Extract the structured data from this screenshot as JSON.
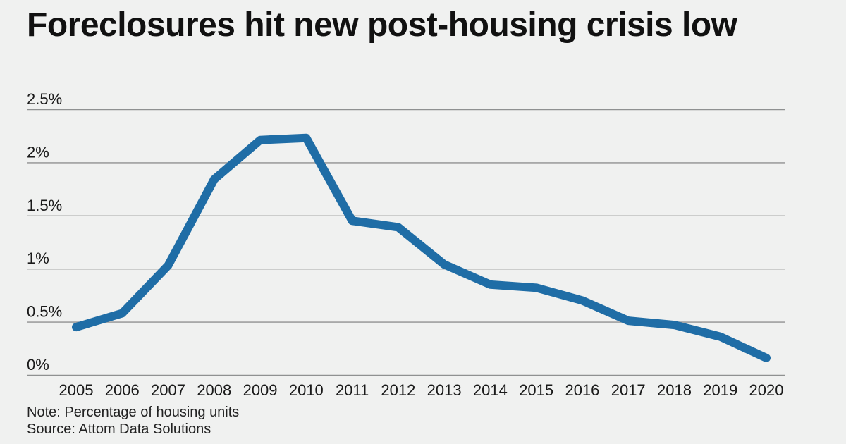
{
  "header": {
    "title": "Foreclosures hit new post-housing crisis low"
  },
  "chart_data": {
    "type": "line",
    "title": "Foreclosures hit new post-housing crisis low",
    "xlabel": "",
    "ylabel": "",
    "categories": [
      "2005",
      "2006",
      "2007",
      "2008",
      "2009",
      "2010",
      "2011",
      "2012",
      "2013",
      "2014",
      "2015",
      "2016",
      "2017",
      "2018",
      "2019",
      "2020"
    ],
    "values": [
      0.45,
      0.58,
      1.03,
      1.84,
      2.21,
      2.23,
      1.45,
      1.39,
      1.04,
      0.85,
      0.82,
      0.7,
      0.51,
      0.47,
      0.36,
      0.16
    ],
    "unit": "percent of housing units",
    "ylim": [
      0,
      2.5
    ],
    "y_ticks": [
      {
        "value": 0,
        "label": "0%"
      },
      {
        "value": 0.5,
        "label": "0.5%"
      },
      {
        "value": 1,
        "label": "1%"
      },
      {
        "value": 1.5,
        "label": "1.5%"
      },
      {
        "value": 2,
        "label": "2%"
      },
      {
        "value": 2.5,
        "label": "2.5%"
      }
    ],
    "grid": true,
    "legend": "none",
    "line_color": "#1f6da6",
    "line_width": 12
  },
  "footer": {
    "note": "Note: Percentage of housing units",
    "source": "Source: Attom Data Solutions"
  },
  "colors": {
    "background": "#f0f1f0",
    "title_text": "#111111",
    "axis_text": "#1a1a1a",
    "grid_line": "#8f9191",
    "accent_line": "#1f6da6"
  }
}
